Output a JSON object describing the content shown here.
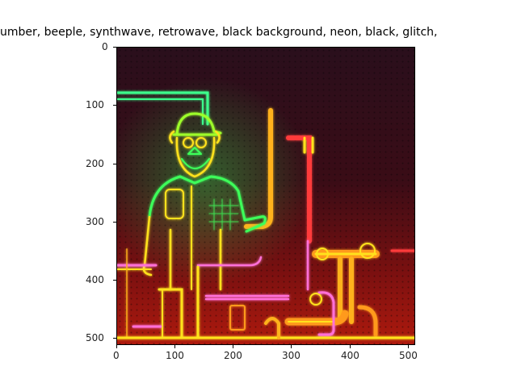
{
  "figure": {
    "title": "umber,  beeple, synthwave, retrowave, black background, neon, black, glitch,",
    "image": {
      "description_icon": "neon-plumber-image"
    },
    "x_axis": {
      "ticks": [
        "0",
        "100",
        "200",
        "300",
        "400",
        "500"
      ]
    },
    "y_axis": {
      "ticks": [
        "0",
        "100",
        "200",
        "300",
        "400",
        "500"
      ]
    }
  },
  "colors": {
    "neon_green": "#34ff5a",
    "neon_yellow": "#ffe21f",
    "neon_orange": "#ff9a1a",
    "neon_red": "#ff3b3b",
    "neon_pink": "#ff6fd8",
    "background_dark": "#1a0a10"
  }
}
